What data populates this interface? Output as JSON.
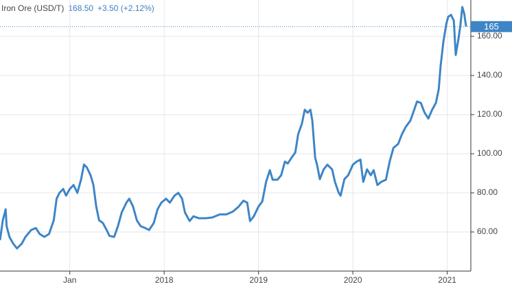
{
  "chart_data": {
    "type": "line",
    "title": "Iron Ore (USD/T)",
    "price": "168.50",
    "change": "+3.50 (+2.12%)",
    "last_value": 165,
    "x": [
      2016.26,
      2016.29,
      2016.32,
      2016.33,
      2016.36,
      2016.4,
      2016.44,
      2016.49,
      2016.53,
      2016.59,
      2016.64,
      2016.68,
      2016.73,
      2016.78,
      2016.83,
      2016.86,
      2016.89,
      2016.93,
      2016.96,
      2017.0,
      2017.04,
      2017.08,
      2017.12,
      2017.15,
      2017.18,
      2017.22,
      2017.25,
      2017.28,
      2017.31,
      2017.35,
      2017.39,
      2017.42,
      2017.47,
      2017.51,
      2017.55,
      2017.6,
      2017.63,
      2017.67,
      2017.71,
      2017.75,
      2017.8,
      2017.84,
      2017.89,
      2017.93,
      2017.97,
      2018.02,
      2018.06,
      2018.11,
      2018.15,
      2018.19,
      2018.22,
      2018.27,
      2018.31,
      2018.37,
      2018.44,
      2018.51,
      2018.59,
      2018.66,
      2018.73,
      2018.79,
      2018.84,
      2018.88,
      2018.91,
      2018.95,
      2019.0,
      2019.04,
      2019.08,
      2019.12,
      2019.15,
      2019.2,
      2019.24,
      2019.28,
      2019.31,
      2019.35,
      2019.39,
      2019.42,
      2019.46,
      2019.49,
      2019.52,
      2019.55,
      2019.57,
      2019.6,
      2019.62,
      2019.65,
      2019.69,
      2019.73,
      2019.78,
      2019.81,
      2019.85,
      2019.87,
      2019.91,
      2019.95,
      2020.0,
      2020.04,
      2020.08,
      2020.11,
      2020.15,
      2020.19,
      2020.22,
      2020.26,
      2020.3,
      2020.35,
      2020.39,
      2020.43,
      2020.48,
      2020.52,
      2020.56,
      2020.61,
      2020.65,
      2020.68,
      2020.72,
      2020.76,
      2020.8,
      2020.84,
      2020.88,
      2020.91,
      2020.93,
      2020.96,
      2020.99,
      2021.01,
      2021.04,
      2021.07,
      2021.09,
      2021.12,
      2021.14,
      2021.16,
      2021.18,
      2021.2
    ],
    "series": [
      {
        "color": "#3d85c6",
        "values": [
          55.8,
          66,
          71.6,
          63,
          57.5,
          54,
          51.6,
          54,
          57.5,
          61,
          62,
          59,
          57.5,
          59,
          66,
          77,
          80,
          82,
          78.6,
          82,
          84,
          80,
          87,
          94.5,
          93,
          89,
          84,
          73,
          66,
          64.6,
          61,
          58,
          57.5,
          63,
          70,
          75,
          77,
          73,
          66,
          63,
          62,
          61,
          64.6,
          71.6,
          75,
          77,
          75,
          78.6,
          80,
          77,
          70,
          65.6,
          68,
          67,
          67,
          67.4,
          69,
          69,
          70.5,
          73,
          76,
          75,
          65.6,
          68,
          73,
          75.6,
          85.6,
          91.6,
          86.7,
          86.7,
          89,
          96,
          95,
          98,
          100.7,
          110,
          115.4,
          122.5,
          121,
          122.5,
          117,
          98,
          94.4,
          87,
          92,
          94.4,
          92,
          85.6,
          80,
          78.6,
          87,
          89,
          94.4,
          96,
          97,
          85.6,
          92,
          89,
          91.6,
          84,
          85.6,
          86.7,
          96,
          103,
          105,
          110,
          113.7,
          117,
          122.5,
          126.7,
          126,
          121,
          118,
          122.5,
          126,
          133,
          145,
          157.5,
          166.3,
          170,
          171,
          168,
          150.5,
          159,
          166,
          175,
          171.6,
          165
        ]
      }
    ],
    "xlim": [
      2016.26,
      2021.25
    ],
    "xticks": [
      {
        "value": 2017,
        "label": "Jan"
      },
      2018,
      2019,
      2020,
      2021
    ],
    "ylim": [
      40,
      178.6
    ],
    "yticks": [
      {
        "value": 60,
        "label": "60.00"
      },
      {
        "value": 80,
        "label": "80.00"
      },
      {
        "value": 100,
        "label": "100.00"
      },
      {
        "value": 120,
        "label": "120.00"
      },
      {
        "value": 140,
        "label": "140.00"
      },
      {
        "value": 160,
        "label": "160.00"
      }
    ],
    "grid": true
  }
}
